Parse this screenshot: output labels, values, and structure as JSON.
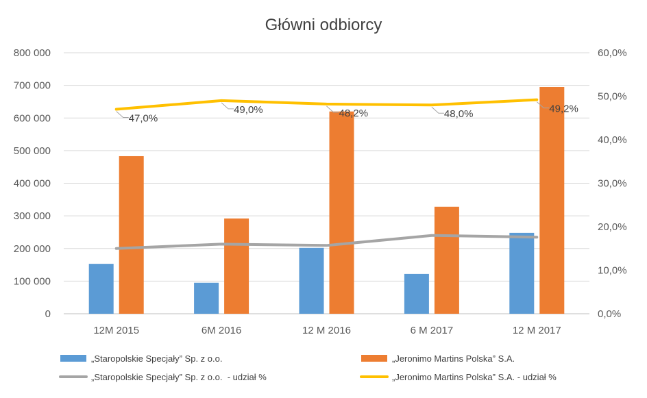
{
  "chart_data": {
    "type": "bar",
    "title": "Główni odbiorcy",
    "categories": [
      "12M 2015",
      "6M 2016",
      "12 M 2016",
      "6 M 2017",
      "12 M 2017"
    ],
    "ylim": [
      0,
      800000
    ],
    "y2lim": [
      0,
      60
    ],
    "yticks": [
      "0",
      "100 000",
      "200 000",
      "300 000",
      "400 000",
      "500 000",
      "600 000",
      "700 000",
      "800 000"
    ],
    "y2ticks": [
      "0,0%",
      "10,0%",
      "20,0%",
      "30,0%",
      "40,0%",
      "50,0%",
      "60,0%"
    ],
    "grid": true,
    "legend_position": "bottom",
    "series": [
      {
        "name": "„Staropolskie Specjały” Sp. z o.o.",
        "type": "bar",
        "axis": "left",
        "color": "#5B9BD5",
        "values": [
          153000,
          95000,
          202000,
          122000,
          248000
        ]
      },
      {
        "name": "„Jeronimo Martins Polska” S.A.",
        "type": "bar",
        "axis": "left",
        "color": "#ED7D31",
        "values": [
          483000,
          292000,
          620000,
          328000,
          695000
        ]
      },
      {
        "name": "„Staropolskie Specjały” Sp. z o.o.  - udział %",
        "type": "line",
        "axis": "right",
        "color": "#A5A5A5",
        "values": [
          15.0,
          16.0,
          15.7,
          18.0,
          17.6
        ]
      },
      {
        "name": "„Jeronimo Martins Polska” S.A. - udział %",
        "type": "line",
        "axis": "right",
        "color": "#FFC000",
        "values": [
          47.0,
          49.0,
          48.2,
          48.0,
          49.2
        ],
        "data_labels": [
          "47,0%",
          "49,0%",
          "48,2%",
          "48,0%",
          "49,2%"
        ]
      }
    ]
  }
}
